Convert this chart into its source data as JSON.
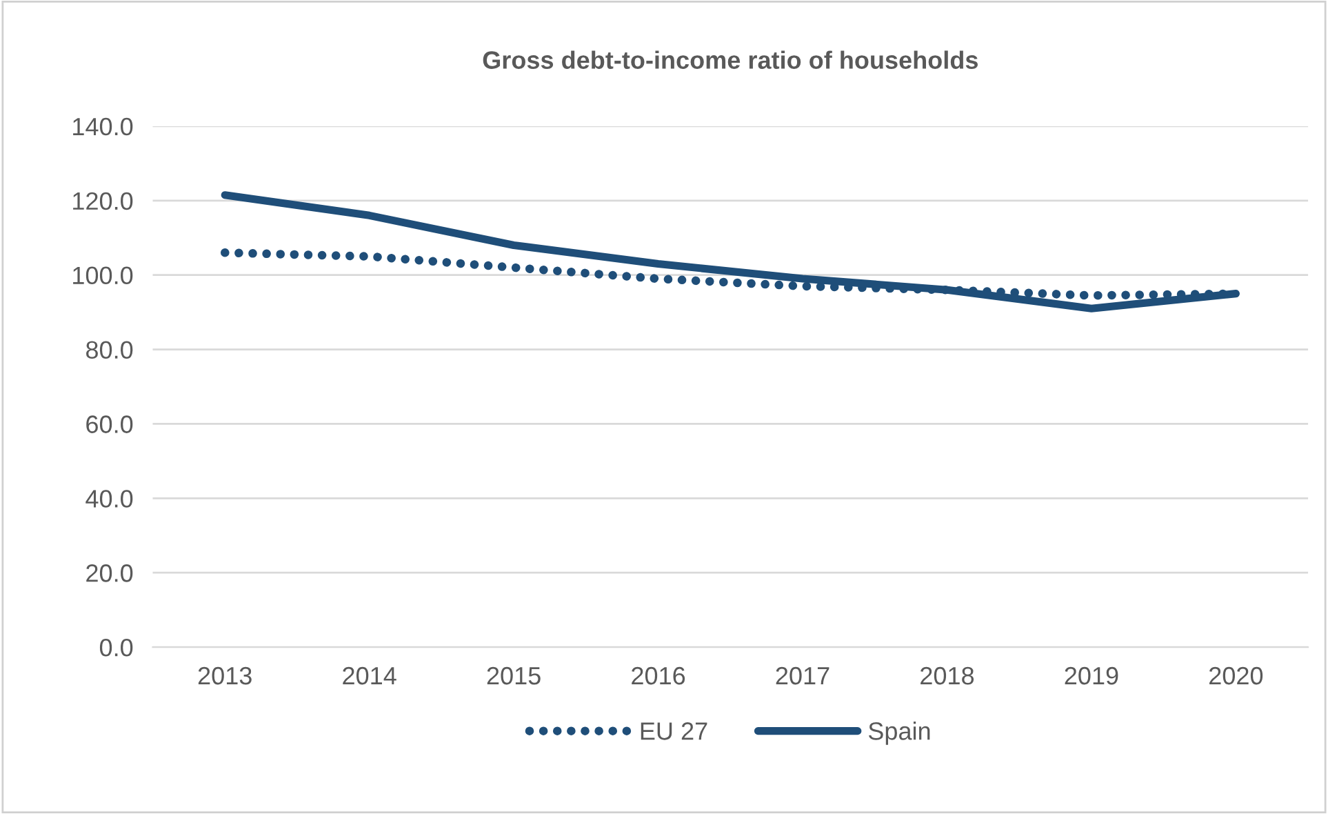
{
  "chart_data": {
    "type": "line",
    "title": "Gross debt-to-income ratio of households",
    "categories": [
      "2013",
      "2014",
      "2015",
      "2016",
      "2017",
      "2018",
      "2019",
      "2020"
    ],
    "series": [
      {
        "name": "EU 27",
        "color": "#1f4e79",
        "line_style": "dotted",
        "values": [
          106,
          105,
          102,
          99,
          97,
          96,
          94.5,
          95
        ]
      },
      {
        "name": "Spain",
        "color": "#1f4e79",
        "line_style": "solid",
        "values": [
          121.5,
          116,
          108,
          103,
          99,
          96,
          91,
          95
        ]
      }
    ],
    "ylim": [
      0,
      140
    ],
    "yticks": [
      {
        "value": 0,
        "label": "0.0"
      },
      {
        "value": 20,
        "label": "20.0"
      },
      {
        "value": 40,
        "label": "40.0"
      },
      {
        "value": 60,
        "label": "60.0"
      },
      {
        "value": 80,
        "label": "80.0"
      },
      {
        "value": 100,
        "label": "100.0"
      },
      {
        "value": 120,
        "label": "120.0"
      },
      {
        "value": 140,
        "label": "140.0"
      }
    ],
    "grid": "y",
    "legend": "bottom",
    "marker": "none"
  }
}
